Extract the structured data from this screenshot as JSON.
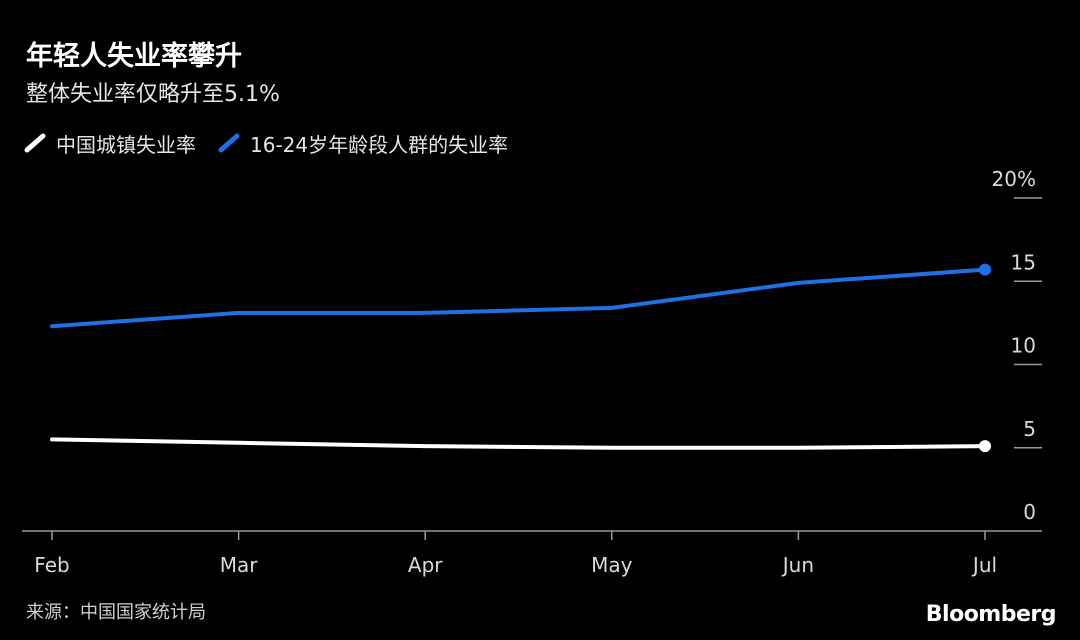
{
  "chart_data": {
    "type": "line",
    "title": "年轻人失业率攀升",
    "subtitle": "整体失业率仅略升至5.1%",
    "x": [
      "Feb",
      "Mar",
      "Apr",
      "May",
      "Jun",
      "Jul"
    ],
    "series": [
      {
        "name": "中国城镇失业率",
        "color": "#ffffff",
        "values": [
          5.5,
          5.3,
          5.1,
          5.0,
          5.0,
          5.1
        ]
      },
      {
        "name": "16-24岁年龄段人群的失业率",
        "color": "#1f6fe5",
        "values": [
          12.3,
          13.1,
          13.1,
          13.4,
          14.9,
          15.7
        ]
      }
    ],
    "ylim": [
      0,
      20
    ],
    "y_ticks": [
      "0",
      "5",
      "10",
      "15",
      "20%"
    ],
    "y_axis_side": "right",
    "end_markers": true,
    "grid": false,
    "legend_position": "top-left"
  },
  "source": "来源：中国国家统计局",
  "brand": "Bloomberg"
}
